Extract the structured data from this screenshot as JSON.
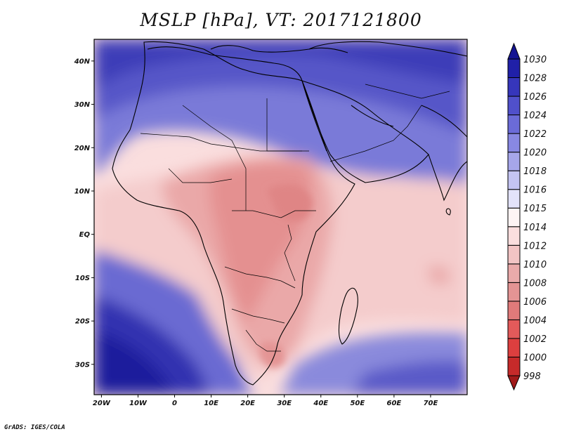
{
  "title": "MSLP [hPa], VT: 2017121800",
  "credit": "GrADS: IGES/COLA",
  "map": {
    "lon_range": [
      -22,
      80
    ],
    "lat_range": [
      -37,
      45
    ],
    "x_ticks": [
      {
        "lon": -20,
        "label": "20W"
      },
      {
        "lon": -10,
        "label": "10W"
      },
      {
        "lon": 0,
        "label": "0"
      },
      {
        "lon": 10,
        "label": "10E"
      },
      {
        "lon": 20,
        "label": "20E"
      },
      {
        "lon": 30,
        "label": "30E"
      },
      {
        "lon": 40,
        "label": "40E"
      },
      {
        "lon": 50,
        "label": "50E"
      },
      {
        "lon": 60,
        "label": "60E"
      },
      {
        "lon": 70,
        "label": "70E"
      }
    ],
    "y_ticks": [
      {
        "lat": 40,
        "label": "40N"
      },
      {
        "lat": 30,
        "label": "30N"
      },
      {
        "lat": 20,
        "label": "20N"
      },
      {
        "lat": 10,
        "label": "10N"
      },
      {
        "lat": 0,
        "label": "EQ"
      },
      {
        "lat": -10,
        "label": "10S"
      },
      {
        "lat": -20,
        "label": "20S"
      },
      {
        "lat": -30,
        "label": "30S"
      }
    ]
  },
  "colorbar": {
    "levels": [
      "998",
      "1000",
      "1002",
      "1004",
      "1006",
      "1008",
      "1010",
      "1012",
      "1014",
      "1015",
      "1016",
      "1018",
      "1020",
      "1022",
      "1024",
      "1026",
      "1028",
      "1030"
    ],
    "colors": [
      "#a11a1a",
      "#c62a2a",
      "#dd3f3f",
      "#e35a5a",
      "#e07a7a",
      "#e49494",
      "#eaaaaa",
      "#f2c4c4",
      "#fadede",
      "#fdf4f4",
      "#e3e3fa",
      "#c4c4f2",
      "#a6a6ea",
      "#8888e2",
      "#6b6bd8",
      "#5050cb",
      "#3636bb",
      "#2020a8",
      "#141493"
    ]
  },
  "fields": {
    "colors": {
      "ocean_deep": "#1a1a96",
      "north_high": "#4646c2",
      "land_low": "#eaaaaa",
      "core_low": "#e08e8e",
      "neutral": "#fdf4f4"
    }
  }
}
